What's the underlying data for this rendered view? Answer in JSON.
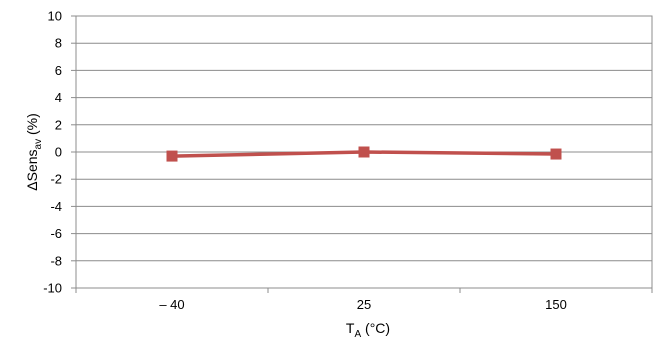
{
  "chart_data": {
    "type": "line",
    "title": "",
    "xlabel": "T",
    "xlabel_subscript": "A",
    "xlabel_unit": " (°C)",
    "ylabel_prefix": "ΔSens",
    "ylabel_subscript": "av",
    "ylabel_unit": "  (%)",
    "categories": [
      "– 40",
      "25",
      "150"
    ],
    "series": [
      {
        "values": [
          -0.3,
          0.0,
          -0.15
        ],
        "color": "#c0504d",
        "marker": "square"
      }
    ],
    "ylim": [
      -10,
      10
    ],
    "yticks": [
      10,
      8,
      6,
      4,
      2,
      0,
      -2,
      -4,
      -6,
      -8,
      -10
    ],
    "ytick_labels": [
      "10",
      "8",
      "6",
      "4",
      "2",
      "0",
      "-2",
      "-4",
      "-6",
      "-8",
      "-10"
    ],
    "grid": true,
    "legend": "none"
  }
}
